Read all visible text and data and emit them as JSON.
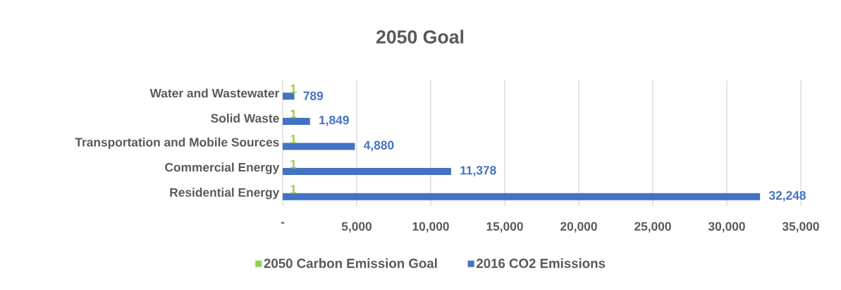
{
  "chart_data": {
    "type": "bar",
    "orientation": "horizontal",
    "title": "2050 Goal",
    "categories": [
      "Water and Wastewater",
      "Solid Waste",
      "Transportation and Mobile Sources",
      "Commercial Energy",
      "Residential Energy"
    ],
    "series": [
      {
        "name": "2050 Carbon Emission Goal",
        "color": "#92d050",
        "values": [
          1,
          1,
          1,
          1,
          1
        ],
        "value_labels": [
          "1",
          "1",
          "1",
          "1",
          "1"
        ]
      },
      {
        "name": "2016 CO2 Emissions",
        "color": "#4472c4",
        "values": [
          789,
          1849,
          4880,
          11378,
          32248
        ],
        "value_labels": [
          "789",
          "1,849",
          "4,880",
          "11,378",
          "32,248"
        ]
      }
    ],
    "xlim": [
      0,
      35000
    ],
    "xticks": [
      {
        "value": 0,
        "label": "-"
      },
      {
        "value": 5000,
        "label": "5,000"
      },
      {
        "value": 10000,
        "label": "10,000"
      },
      {
        "value": 15000,
        "label": "15,000"
      },
      {
        "value": 20000,
        "label": "20,000"
      },
      {
        "value": 25000,
        "label": "25,000"
      },
      {
        "value": 30000,
        "label": "30,000"
      },
      {
        "value": 35000,
        "label": "35,000"
      }
    ],
    "grid": "x",
    "legend": "bottom"
  }
}
